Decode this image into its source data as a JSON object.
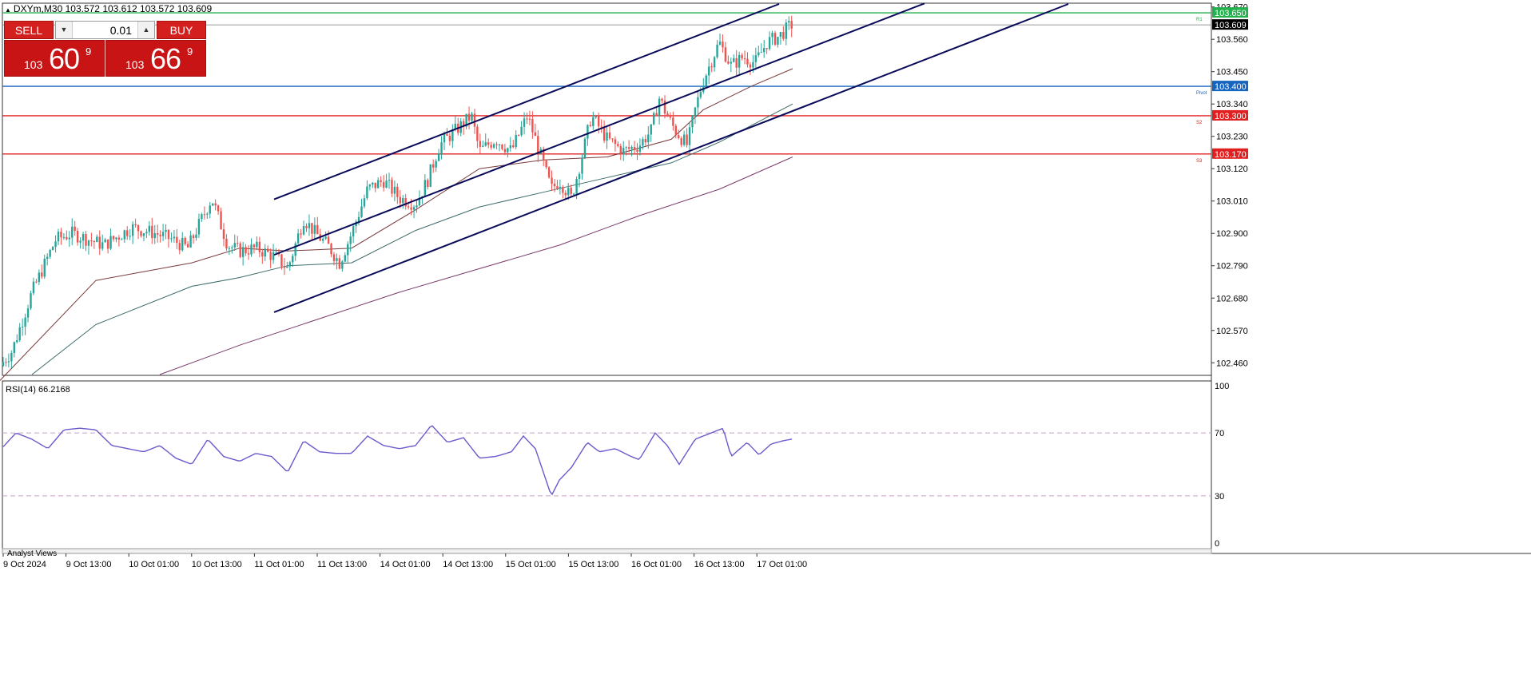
{
  "header": {
    "arrow": "▲",
    "text": "DXYm,M30  103.572 103.612 103.572 103.609"
  },
  "trade_panel": {
    "sell_label": "SELL",
    "buy_label": "BUY",
    "lot_value": "0.01",
    "bid": {
      "small": "103",
      "big": "60",
      "sup": "9"
    },
    "ask": {
      "small": "103",
      "big": "66",
      "sup": "9"
    }
  },
  "price_axis": {
    "ticks": [
      "103.670",
      "103.560",
      "103.450",
      "103.340",
      "103.230",
      "103.120",
      "103.010",
      "102.900",
      "102.790",
      "102.680",
      "102.570",
      "102.460"
    ],
    "range": [
      102.42,
      103.68
    ]
  },
  "levels": [
    {
      "price": 103.65,
      "label": "103.650",
      "color": "#22b14c",
      "tag": "R1"
    },
    {
      "price": 103.609,
      "label": "103.609",
      "color": "#777777",
      "tag": ""
    },
    {
      "price": 103.4,
      "label": "103.400",
      "color": "#1565c0",
      "tag": "Pivot"
    },
    {
      "price": 103.3,
      "label": "103.300",
      "color": "#e02020",
      "tag": "S2"
    },
    {
      "price": 103.17,
      "label": "103.170",
      "color": "#e02020",
      "tag": "S3"
    }
  ],
  "time_axis": [
    "9 Oct 2024",
    "9 Oct 13:00",
    "10 Oct 01:00",
    "10 Oct 13:00",
    "11 Oct 01:00",
    "11 Oct 13:00",
    "14 Oct 01:00",
    "14 Oct 13:00",
    "15 Oct 01:00",
    "15 Oct 13:00",
    "16 Oct 01:00",
    "16 Oct 13:00",
    "17 Oct 01:00"
  ],
  "rsi": {
    "title": "RSI(14) 66.2168",
    "scale_labels": [
      "100",
      "70",
      "30",
      "0"
    ],
    "levels": [
      70,
      30
    ],
    "color": "#6a5acd"
  },
  "footer_label": "Analyst Views",
  "colors": {
    "bull": "#26a69a",
    "bear": "#ef5350",
    "channel": "#0a0a5a",
    "ma_fast": "#7a3b3b",
    "ma_mid": "#3b6b6b",
    "ma_slow": "#7a3b6a"
  },
  "chart_data": {
    "type": "candlestick",
    "symbol": "DXYm",
    "timeframe": "M30",
    "close_anchors": [
      [
        0,
        102.45
      ],
      [
        15,
        102.5
      ],
      [
        40,
        102.7
      ],
      [
        70,
        102.88
      ],
      [
        90,
        102.9
      ],
      [
        130,
        102.86
      ],
      [
        165,
        102.92
      ],
      [
        195,
        102.9
      ],
      [
        215,
        102.88
      ],
      [
        235,
        102.85
      ],
      [
        265,
        103.02
      ],
      [
        285,
        102.86
      ],
      [
        300,
        102.84
      ],
      [
        320,
        102.85
      ],
      [
        345,
        102.82
      ],
      [
        360,
        102.78
      ],
      [
        380,
        102.95
      ],
      [
        395,
        102.9
      ],
      [
        410,
        102.86
      ],
      [
        425,
        102.8
      ],
      [
        440,
        102.9
      ],
      [
        460,
        103.05
      ],
      [
        480,
        103.08
      ],
      [
        500,
        103.02
      ],
      [
        520,
        103.0
      ],
      [
        535,
        103.08
      ],
      [
        550,
        103.2
      ],
      [
        570,
        103.25
      ],
      [
        590,
        103.3
      ],
      [
        600,
        103.18
      ],
      [
        620,
        103.22
      ],
      [
        640,
        103.18
      ],
      [
        660,
        103.3
      ],
      [
        670,
        103.22
      ],
      [
        690,
        103.05
      ],
      [
        700,
        103.08
      ],
      [
        715,
        103.02
      ],
      [
        730,
        103.18
      ],
      [
        740,
        103.3
      ],
      [
        760,
        103.22
      ],
      [
        780,
        103.18
      ],
      [
        800,
        103.2
      ],
      [
        815,
        103.25
      ],
      [
        825,
        103.36
      ],
      [
        835,
        103.3
      ],
      [
        845,
        103.25
      ],
      [
        860,
        103.2
      ],
      [
        870,
        103.32
      ],
      [
        880,
        103.42
      ],
      [
        900,
        103.55
      ],
      [
        915,
        103.47
      ],
      [
        930,
        103.5
      ],
      [
        945,
        103.48
      ],
      [
        960,
        103.55
      ],
      [
        975,
        103.57
      ],
      [
        990,
        103.609
      ]
    ],
    "rsi_anchors": [
      [
        0,
        59
      ],
      [
        20,
        70
      ],
      [
        40,
        66
      ],
      [
        60,
        60
      ],
      [
        80,
        72
      ],
      [
        100,
        73
      ],
      [
        120,
        72
      ],
      [
        140,
        62
      ],
      [
        160,
        60
      ],
      [
        180,
        58
      ],
      [
        200,
        62
      ],
      [
        220,
        54
      ],
      [
        240,
        50
      ],
      [
        260,
        66
      ],
      [
        280,
        55
      ],
      [
        300,
        52
      ],
      [
        320,
        57
      ],
      [
        340,
        55
      ],
      [
        360,
        45
      ],
      [
        380,
        65
      ],
      [
        400,
        58
      ],
      [
        420,
        57
      ],
      [
        440,
        57
      ],
      [
        460,
        68
      ],
      [
        480,
        62
      ],
      [
        500,
        60
      ],
      [
        520,
        62
      ],
      [
        540,
        75
      ],
      [
        560,
        64
      ],
      [
        580,
        67
      ],
      [
        600,
        54
      ],
      [
        620,
        55
      ],
      [
        640,
        58
      ],
      [
        655,
        68
      ],
      [
        670,
        60
      ],
      [
        690,
        30
      ],
      [
        700,
        40
      ],
      [
        715,
        48
      ],
      [
        735,
        64
      ],
      [
        750,
        58
      ],
      [
        770,
        60
      ],
      [
        790,
        55
      ],
      [
        800,
        53
      ],
      [
        820,
        70
      ],
      [
        835,
        62
      ],
      [
        850,
        50
      ],
      [
        870,
        66
      ],
      [
        890,
        70
      ],
      [
        905,
        73
      ],
      [
        915,
        55
      ],
      [
        935,
        64
      ],
      [
        950,
        56
      ],
      [
        965,
        63
      ],
      [
        980,
        65
      ],
      [
        992,
        66.2
      ]
    ],
    "channel_lines": [
      {
        "x": [
          343,
          975
        ],
        "y": [
          103.016,
          103.68
        ]
      },
      {
        "x": [
          343,
          1157
        ],
        "y": [
          102.827,
          103.682
        ]
      },
      {
        "x": [
          343,
          1337
        ],
        "y": [
          102.632,
          103.68
        ]
      }
    ],
    "moving_averages": [
      {
        "name": "ma_fast",
        "points": [
          [
            0,
            102.4
          ],
          [
            120,
            102.74
          ],
          [
            240,
            102.8
          ],
          [
            300,
            102.85
          ],
          [
            360,
            102.84
          ],
          [
            440,
            102.85
          ],
          [
            520,
            102.98
          ],
          [
            600,
            103.12
          ],
          [
            680,
            103.15
          ],
          [
            760,
            103.16
          ],
          [
            840,
            103.22
          ],
          [
            880,
            103.32
          ],
          [
            940,
            103.4
          ],
          [
            992,
            103.46
          ]
        ]
      },
      {
        "name": "ma_mid",
        "points": [
          [
            40,
            102.42
          ],
          [
            120,
            102.59
          ],
          [
            240,
            102.72
          ],
          [
            300,
            102.75
          ],
          [
            360,
            102.79
          ],
          [
            440,
            102.8
          ],
          [
            520,
            102.91
          ],
          [
            600,
            102.99
          ],
          [
            680,
            103.04
          ],
          [
            760,
            103.09
          ],
          [
            840,
            103.14
          ],
          [
            900,
            103.21
          ],
          [
            992,
            103.34
          ]
        ]
      },
      {
        "name": "ma_slow",
        "points": [
          [
            200,
            102.42
          ],
          [
            300,
            102.52
          ],
          [
            400,
            102.61
          ],
          [
            500,
            102.7
          ],
          [
            600,
            102.78
          ],
          [
            700,
            102.86
          ],
          [
            800,
            102.96
          ],
          [
            900,
            103.05
          ],
          [
            992,
            103.16
          ]
        ]
      }
    ]
  }
}
